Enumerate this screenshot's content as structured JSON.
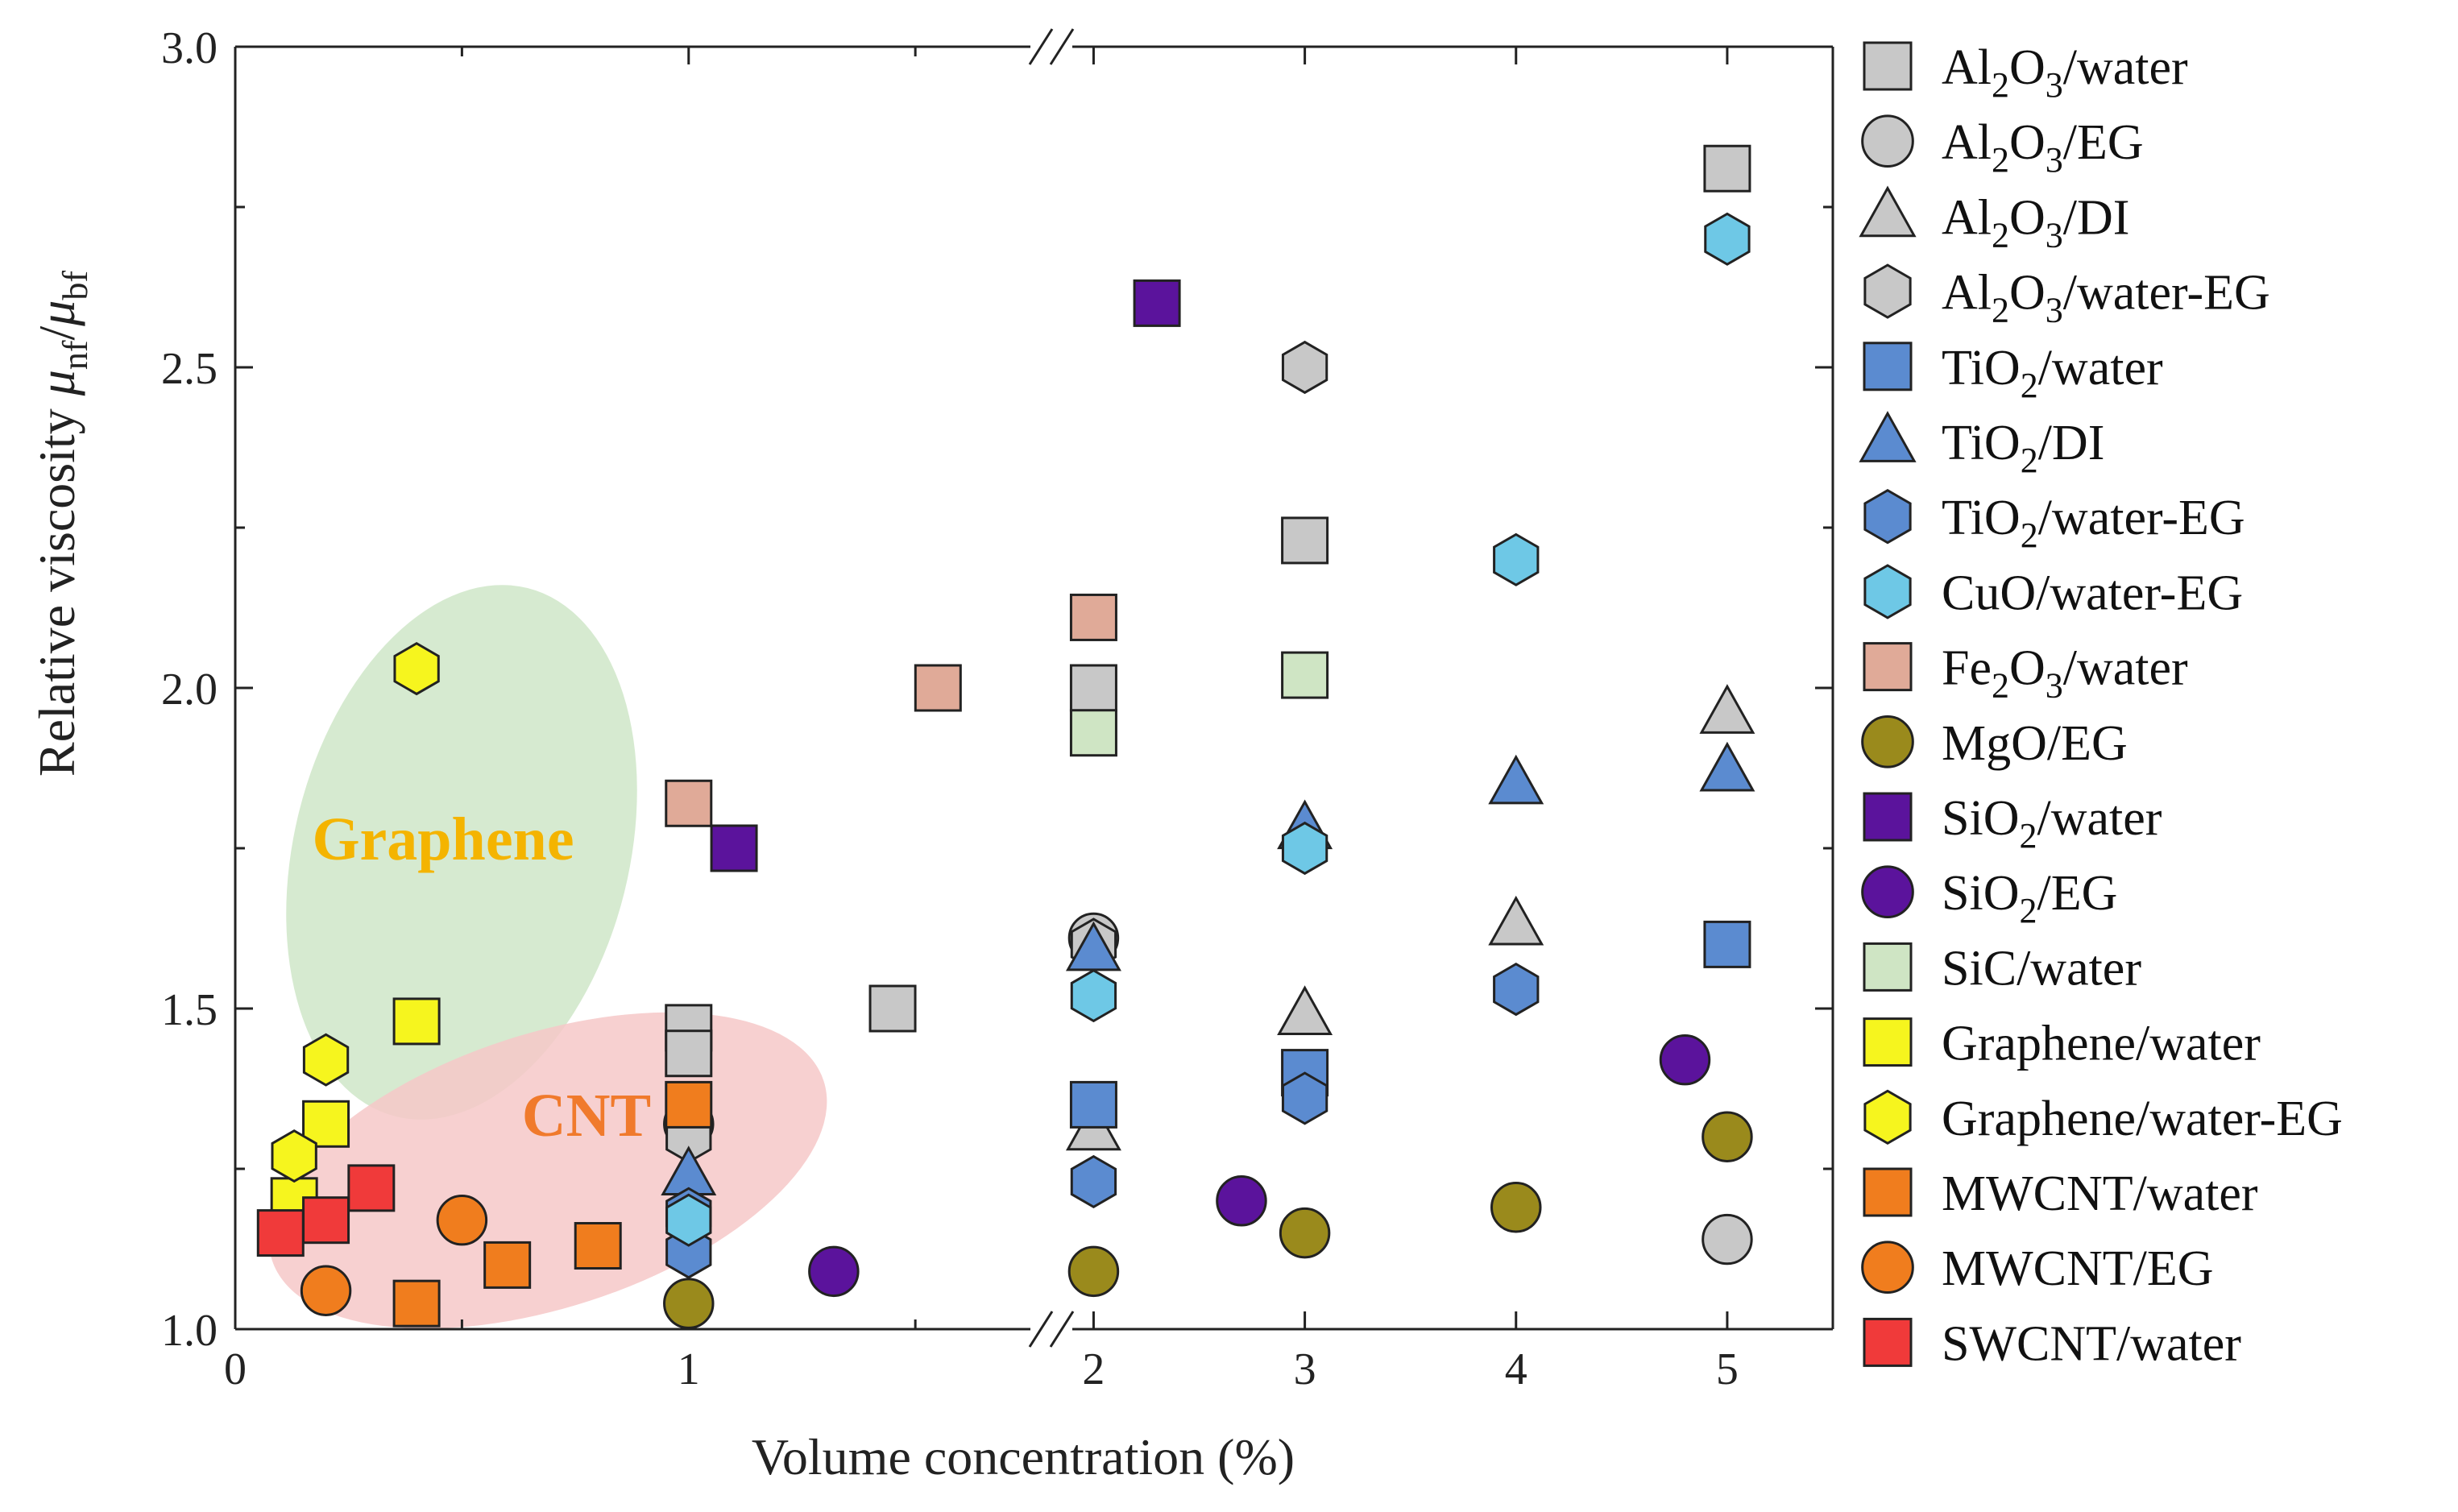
{
  "chart_data": {
    "type": "scatter",
    "title": "",
    "xlabel": "Volume concentration (%)",
    "ylabel": "Relative viscosity μnf/μbf",
    "ylim": [
      1.0,
      3.0
    ],
    "x_axis": {
      "scale": "broken",
      "break_at": 1.8,
      "segment_1_range": [
        0,
        1.8
      ],
      "segment_2_range": [
        1.8,
        5.5
      ],
      "tick_labels": [
        "0",
        "1",
        "2",
        "3",
        "4",
        "5"
      ]
    },
    "y_tick_labels": [
      "1.0",
      "1.5",
      "2.0",
      "2.5",
      "3.0"
    ],
    "grid": false,
    "legend_position": "right-outside",
    "annotations": [
      {
        "text": "Graphene",
        "color": "#f4b400",
        "region_fill": "#cfe6c8"
      },
      {
        "text": "CNT",
        "color": "#f07a2c",
        "region_fill": "#f6c8c8"
      }
    ],
    "series": [
      {
        "name": "Al2O3/water",
        "label_base": "Al",
        "label_sub1": "2",
        "label_mid": "O",
        "label_sub2": "3",
        "label_rest": "/water",
        "marker": "square",
        "color": "#c8c8c8",
        "points": [
          [
            1.0,
            1.47
          ],
          [
            1.0,
            1.43
          ],
          [
            1.45,
            1.5
          ],
          [
            2.0,
            2.0
          ],
          [
            3.0,
            2.23
          ],
          [
            5.0,
            2.81
          ]
        ]
      },
      {
        "name": "Al2O3/EG",
        "label_base": "Al",
        "label_sub1": "2",
        "label_mid": "O",
        "label_sub2": "3",
        "label_rest": "/EG",
        "marker": "circle",
        "color": "#c8c8c8",
        "points": [
          [
            1.0,
            1.32
          ],
          [
            2.0,
            1.61
          ],
          [
            5.0,
            1.14
          ]
        ]
      },
      {
        "name": "Al2O3/DI",
        "label_base": "Al",
        "label_sub1": "2",
        "label_mid": "O",
        "label_sub2": "3",
        "label_rest": "/DI",
        "marker": "triangle",
        "color": "#c8c8c8",
        "points": [
          [
            2.0,
            1.31
          ],
          [
            3.0,
            1.49
          ],
          [
            4.0,
            1.63
          ],
          [
            5.0,
            1.96
          ]
        ]
      },
      {
        "name": "Al2O3/water-EG",
        "label_base": "Al",
        "label_sub1": "2",
        "label_mid": "O",
        "label_sub2": "3",
        "label_rest": "/water-EG",
        "marker": "hexagon",
        "color": "#c8c8c8",
        "points": [
          [
            1.0,
            1.3
          ],
          [
            2.0,
            1.6
          ],
          [
            3.0,
            2.5
          ]
        ]
      },
      {
        "name": "TiO2/water",
        "label_base": "TiO",
        "label_sub1": "2",
        "label_mid": "",
        "label_sub2": "",
        "label_rest": "/water",
        "marker": "square",
        "color": "#5b8bd0",
        "points": [
          [
            2.0,
            1.35
          ],
          [
            3.0,
            1.4
          ],
          [
            5.0,
            1.6
          ]
        ]
      },
      {
        "name": "TiO2/DI",
        "label_base": "TiO",
        "label_sub1": "2",
        "label_mid": "",
        "label_sub2": "",
        "label_rest": "/DI",
        "marker": "triangle",
        "color": "#5b8bd0",
        "points": [
          [
            1.0,
            1.24
          ],
          [
            2.0,
            1.59
          ],
          [
            3.0,
            1.78
          ],
          [
            4.0,
            1.85
          ],
          [
            5.0,
            1.87
          ]
        ]
      },
      {
        "name": "TiO2/water-EG",
        "label_base": "TiO",
        "label_sub1": "2",
        "label_mid": "",
        "label_sub2": "",
        "label_rest": "/water-EG",
        "marker": "hexagon",
        "color": "#5b8bd0",
        "points": [
          [
            1.0,
            1.12
          ],
          [
            1.0,
            1.18
          ],
          [
            2.0,
            1.23
          ],
          [
            3.0,
            1.36
          ],
          [
            4.0,
            1.53
          ]
        ]
      },
      {
        "name": "CuO/water-EG",
        "label_base": "CuO",
        "label_sub1": "",
        "label_mid": "",
        "label_sub2": "",
        "label_rest": "/water-EG",
        "marker": "hexagon",
        "color": "#6ec8e6",
        "points": [
          [
            1.0,
            1.17
          ],
          [
            2.0,
            1.52
          ],
          [
            3.0,
            1.75
          ],
          [
            4.0,
            2.2
          ],
          [
            5.0,
            2.7
          ]
        ]
      },
      {
        "name": "Fe2O3/water",
        "label_base": "Fe",
        "label_sub1": "2",
        "label_mid": "O",
        "label_sub2": "3",
        "label_rest": "/water",
        "marker": "square",
        "color": "#e0aa98",
        "points": [
          [
            1.0,
            1.82
          ],
          [
            1.55,
            2.0
          ],
          [
            2.0,
            2.11
          ]
        ]
      },
      {
        "name": "MgO/EG",
        "label_base": "MgO",
        "label_sub1": "",
        "label_mid": "",
        "label_sub2": "",
        "label_rest": "/EG",
        "marker": "circle",
        "color": "#9a8a1c",
        "points": [
          [
            1.0,
            1.04
          ],
          [
            2.0,
            1.09
          ],
          [
            3.0,
            1.15
          ],
          [
            4.0,
            1.19
          ],
          [
            5.0,
            1.3
          ]
        ]
      },
      {
        "name": "SiO2/water",
        "label_base": "SiO",
        "label_sub1": "2",
        "label_mid": "",
        "label_sub2": "",
        "label_rest": "/water",
        "marker": "square",
        "color": "#5b139c",
        "points": [
          [
            1.1,
            1.75
          ],
          [
            2.3,
            2.6
          ]
        ]
      },
      {
        "name": "SiO2/EG",
        "label_base": "SiO",
        "label_sub1": "2",
        "label_mid": "",
        "label_sub2": "",
        "label_rest": "/EG",
        "marker": "circle",
        "color": "#5b139c",
        "points": [
          [
            1.32,
            1.09
          ],
          [
            2.7,
            1.2
          ],
          [
            4.8,
            1.42
          ]
        ]
      },
      {
        "name": "SiC/water",
        "label_base": "SiC",
        "label_sub1": "",
        "label_mid": "",
        "label_sub2": "",
        "label_rest": "/water",
        "marker": "square",
        "color": "#cfe5c4",
        "points": [
          [
            2.0,
            1.93
          ],
          [
            3.0,
            2.02
          ]
        ]
      },
      {
        "name": "Graphene/water",
        "label_base": "Graphene",
        "label_sub1": "",
        "label_mid": "",
        "label_sub2": "",
        "label_rest": "/water",
        "marker": "square",
        "color": "#f6f51e",
        "points": [
          [
            0.13,
            1.2
          ],
          [
            0.2,
            1.32
          ],
          [
            0.4,
            1.48
          ]
        ]
      },
      {
        "name": "Graphene/water-EG",
        "label_base": "Graphene",
        "label_sub1": "",
        "label_mid": "",
        "label_sub2": "",
        "label_rest": "/water-EG",
        "marker": "hexagon",
        "color": "#f6f51e",
        "points": [
          [
            0.13,
            1.27
          ],
          [
            0.2,
            1.42
          ],
          [
            0.4,
            2.03
          ]
        ]
      },
      {
        "name": "MWCNT/water",
        "label_base": "MWCNT",
        "label_sub1": "",
        "label_mid": "",
        "label_sub2": "",
        "label_rest": "/water",
        "marker": "square",
        "color": "#f07d1e",
        "points": [
          [
            0.4,
            1.04
          ],
          [
            0.6,
            1.1
          ],
          [
            0.8,
            1.13
          ],
          [
            1.0,
            1.35
          ]
        ]
      },
      {
        "name": "MWCNT/EG",
        "label_base": "MWCNT",
        "label_sub1": "",
        "label_mid": "",
        "label_sub2": "",
        "label_rest": "/EG",
        "marker": "circle",
        "color": "#f07d1e",
        "points": [
          [
            0.2,
            1.06
          ],
          [
            0.5,
            1.17
          ]
        ]
      },
      {
        "name": "SWCNT/water",
        "label_base": "SWCNT",
        "label_sub1": "",
        "label_mid": "",
        "label_sub2": "",
        "label_rest": "/water",
        "marker": "square",
        "color": "#f03a3a",
        "points": [
          [
            0.1,
            1.15
          ],
          [
            0.2,
            1.17
          ],
          [
            0.3,
            1.22
          ]
        ]
      }
    ]
  }
}
